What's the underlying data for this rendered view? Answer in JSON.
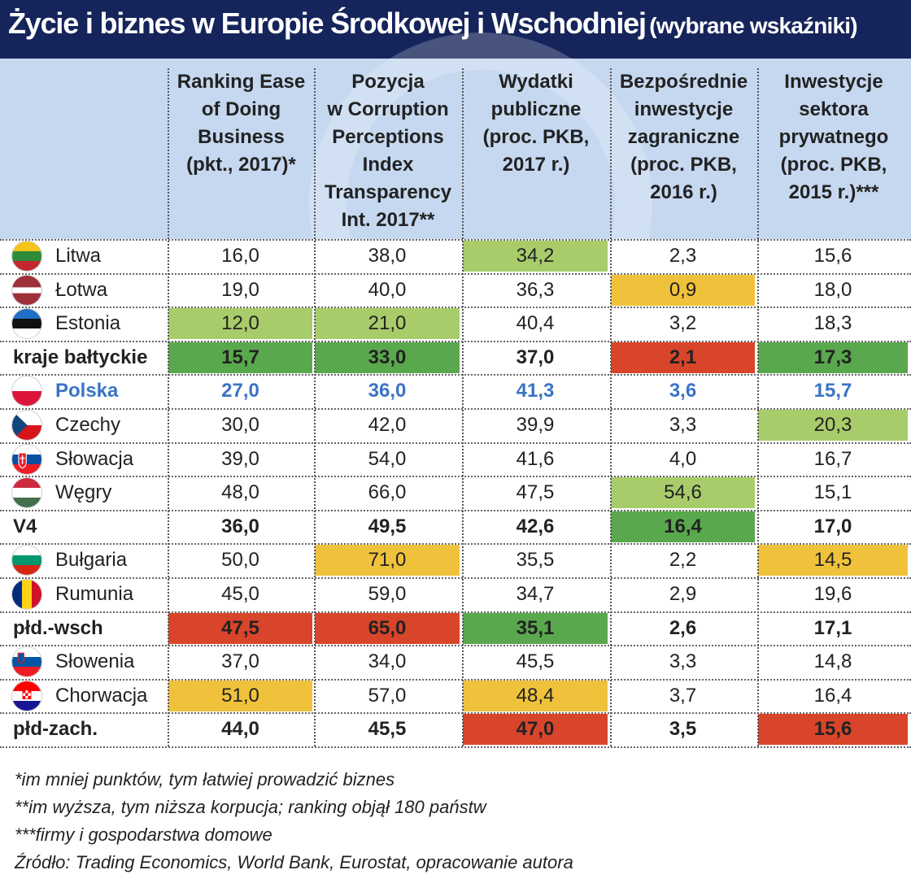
{
  "title": "Życie i biznes w Europie Środkowej i Wschodniej",
  "subtitle": "(wybrane wskaźniki)",
  "colors": {
    "dark_green": "#5aa84d",
    "light_green": "#a8cc6a",
    "yellow": "#f0c23b",
    "red": "#d9452a",
    "header_bg": "#c5d8f0",
    "title_bg": "#15245a",
    "highlight_text": "#3b74c4"
  },
  "chart_data": {
    "type": "table",
    "title": "Życie i biznes w Europie Środkowej i Wschodniej (wybrane wskaźniki)",
    "columns": [
      "Ranking Ease\nof Doing\nBusiness\n(pkt., 2017)*",
      "Pozycja\nw Corruption\nPerceptions\nIndex\nTransparency\nInt. 2017**",
      "Wydatki\npubliczne\n(proc. PKB,\n2017 r.)",
      "Bezpośrednie\ninwestycje\nzagraniczne\n(proc. PKB,\n2016 r.)",
      "Inwestycje\nsektora\nprywatnego\n(proc. PKB,\n2015 r.)***"
    ],
    "rows": [
      {
        "name": "Litwa",
        "flag": "lithuania-flag-icon",
        "type": "country",
        "values": [
          "16,0",
          "38,0",
          "34,2",
          "2,3",
          "15,6"
        ],
        "colors": [
          "",
          "",
          "light_green",
          "",
          ""
        ]
      },
      {
        "name": "Łotwa",
        "flag": "latvia-flag-icon",
        "type": "country",
        "values": [
          "19,0",
          "40,0",
          "36,3",
          "0,9",
          "18,0"
        ],
        "colors": [
          "",
          "",
          "",
          "yellow",
          ""
        ]
      },
      {
        "name": "Estonia",
        "flag": "estonia-flag-icon",
        "type": "country",
        "values": [
          "12,0",
          "21,0",
          "40,4",
          "3,2",
          "18,3"
        ],
        "colors": [
          "light_green",
          "light_green",
          "",
          "",
          ""
        ]
      },
      {
        "name": "kraje bałtyckie",
        "flag": "",
        "type": "aggregate",
        "values": [
          "15,7",
          "33,0",
          "37,0",
          "2,1",
          "17,3"
        ],
        "colors": [
          "dark_green",
          "dark_green",
          "",
          "red",
          "dark_green"
        ]
      },
      {
        "name": "Polska",
        "flag": "poland-flag-icon",
        "type": "highlight",
        "values": [
          "27,0",
          "36,0",
          "41,3",
          "3,6",
          "15,7"
        ],
        "colors": [
          "",
          "",
          "",
          "",
          ""
        ]
      },
      {
        "name": "Czechy",
        "flag": "czechia-flag-icon",
        "type": "country",
        "values": [
          "30,0",
          "42,0",
          "39,9",
          "3,3",
          "20,3"
        ],
        "colors": [
          "",
          "",
          "",
          "",
          "light_green"
        ]
      },
      {
        "name": "Słowacja",
        "flag": "slovakia-flag-icon",
        "type": "country",
        "values": [
          "39,0",
          "54,0",
          "41,6",
          "4,0",
          "16,7"
        ],
        "colors": [
          "",
          "",
          "",
          "",
          ""
        ]
      },
      {
        "name": "Węgry",
        "flag": "hungary-flag-icon",
        "type": "country",
        "values": [
          "48,0",
          "66,0",
          "47,5",
          "54,6",
          "15,1"
        ],
        "colors": [
          "",
          "",
          "",
          "light_green",
          ""
        ]
      },
      {
        "name": "V4",
        "flag": "",
        "type": "aggregate",
        "values": [
          "36,0",
          "49,5",
          "42,6",
          "16,4",
          "17,0"
        ],
        "colors": [
          "",
          "",
          "",
          "dark_green",
          ""
        ]
      },
      {
        "name": "Bułgaria",
        "flag": "bulgaria-flag-icon",
        "type": "country",
        "values": [
          "50,0",
          "71,0",
          "35,5",
          "2,2",
          "14,5"
        ],
        "colors": [
          "",
          "yellow",
          "",
          "",
          "yellow"
        ]
      },
      {
        "name": "Rumunia",
        "flag": "romania-flag-icon",
        "type": "country",
        "values": [
          "45,0",
          "59,0",
          "34,7",
          "2,9",
          "19,6"
        ],
        "colors": [
          "",
          "",
          "",
          "",
          ""
        ]
      },
      {
        "name": "płd.-wsch",
        "flag": "",
        "type": "aggregate",
        "values": [
          "47,5",
          "65,0",
          "35,1",
          "2,6",
          "17,1"
        ],
        "colors": [
          "red",
          "red",
          "dark_green",
          "",
          ""
        ]
      },
      {
        "name": "Słowenia",
        "flag": "slovenia-flag-icon",
        "type": "country",
        "values": [
          "37,0",
          "34,0",
          "45,5",
          "3,3",
          "14,8"
        ],
        "colors": [
          "",
          "",
          "",
          "",
          ""
        ]
      },
      {
        "name": "Chorwacja",
        "flag": "croatia-flag-icon",
        "type": "country",
        "values": [
          "51,0",
          "57,0",
          "48,4",
          "3,7",
          "16,4"
        ],
        "colors": [
          "yellow",
          "",
          "yellow",
          "",
          ""
        ]
      },
      {
        "name": "płd-zach.",
        "flag": "",
        "type": "aggregate",
        "values": [
          "44,0",
          "45,5",
          "47,0",
          "3,5",
          "15,6"
        ],
        "colors": [
          "",
          "",
          "red",
          "",
          "red"
        ]
      }
    ]
  },
  "notes": [
    "*im mniej punktów, tym łatwiej prowadzić biznes",
    "**im wyższa, tym niższa korpucja; ranking objął 180 państw",
    "***firmy i gospodarstwa domowe",
    "Źródło: Trading Economics, World Bank, Eurostat, opracowanie autora"
  ]
}
